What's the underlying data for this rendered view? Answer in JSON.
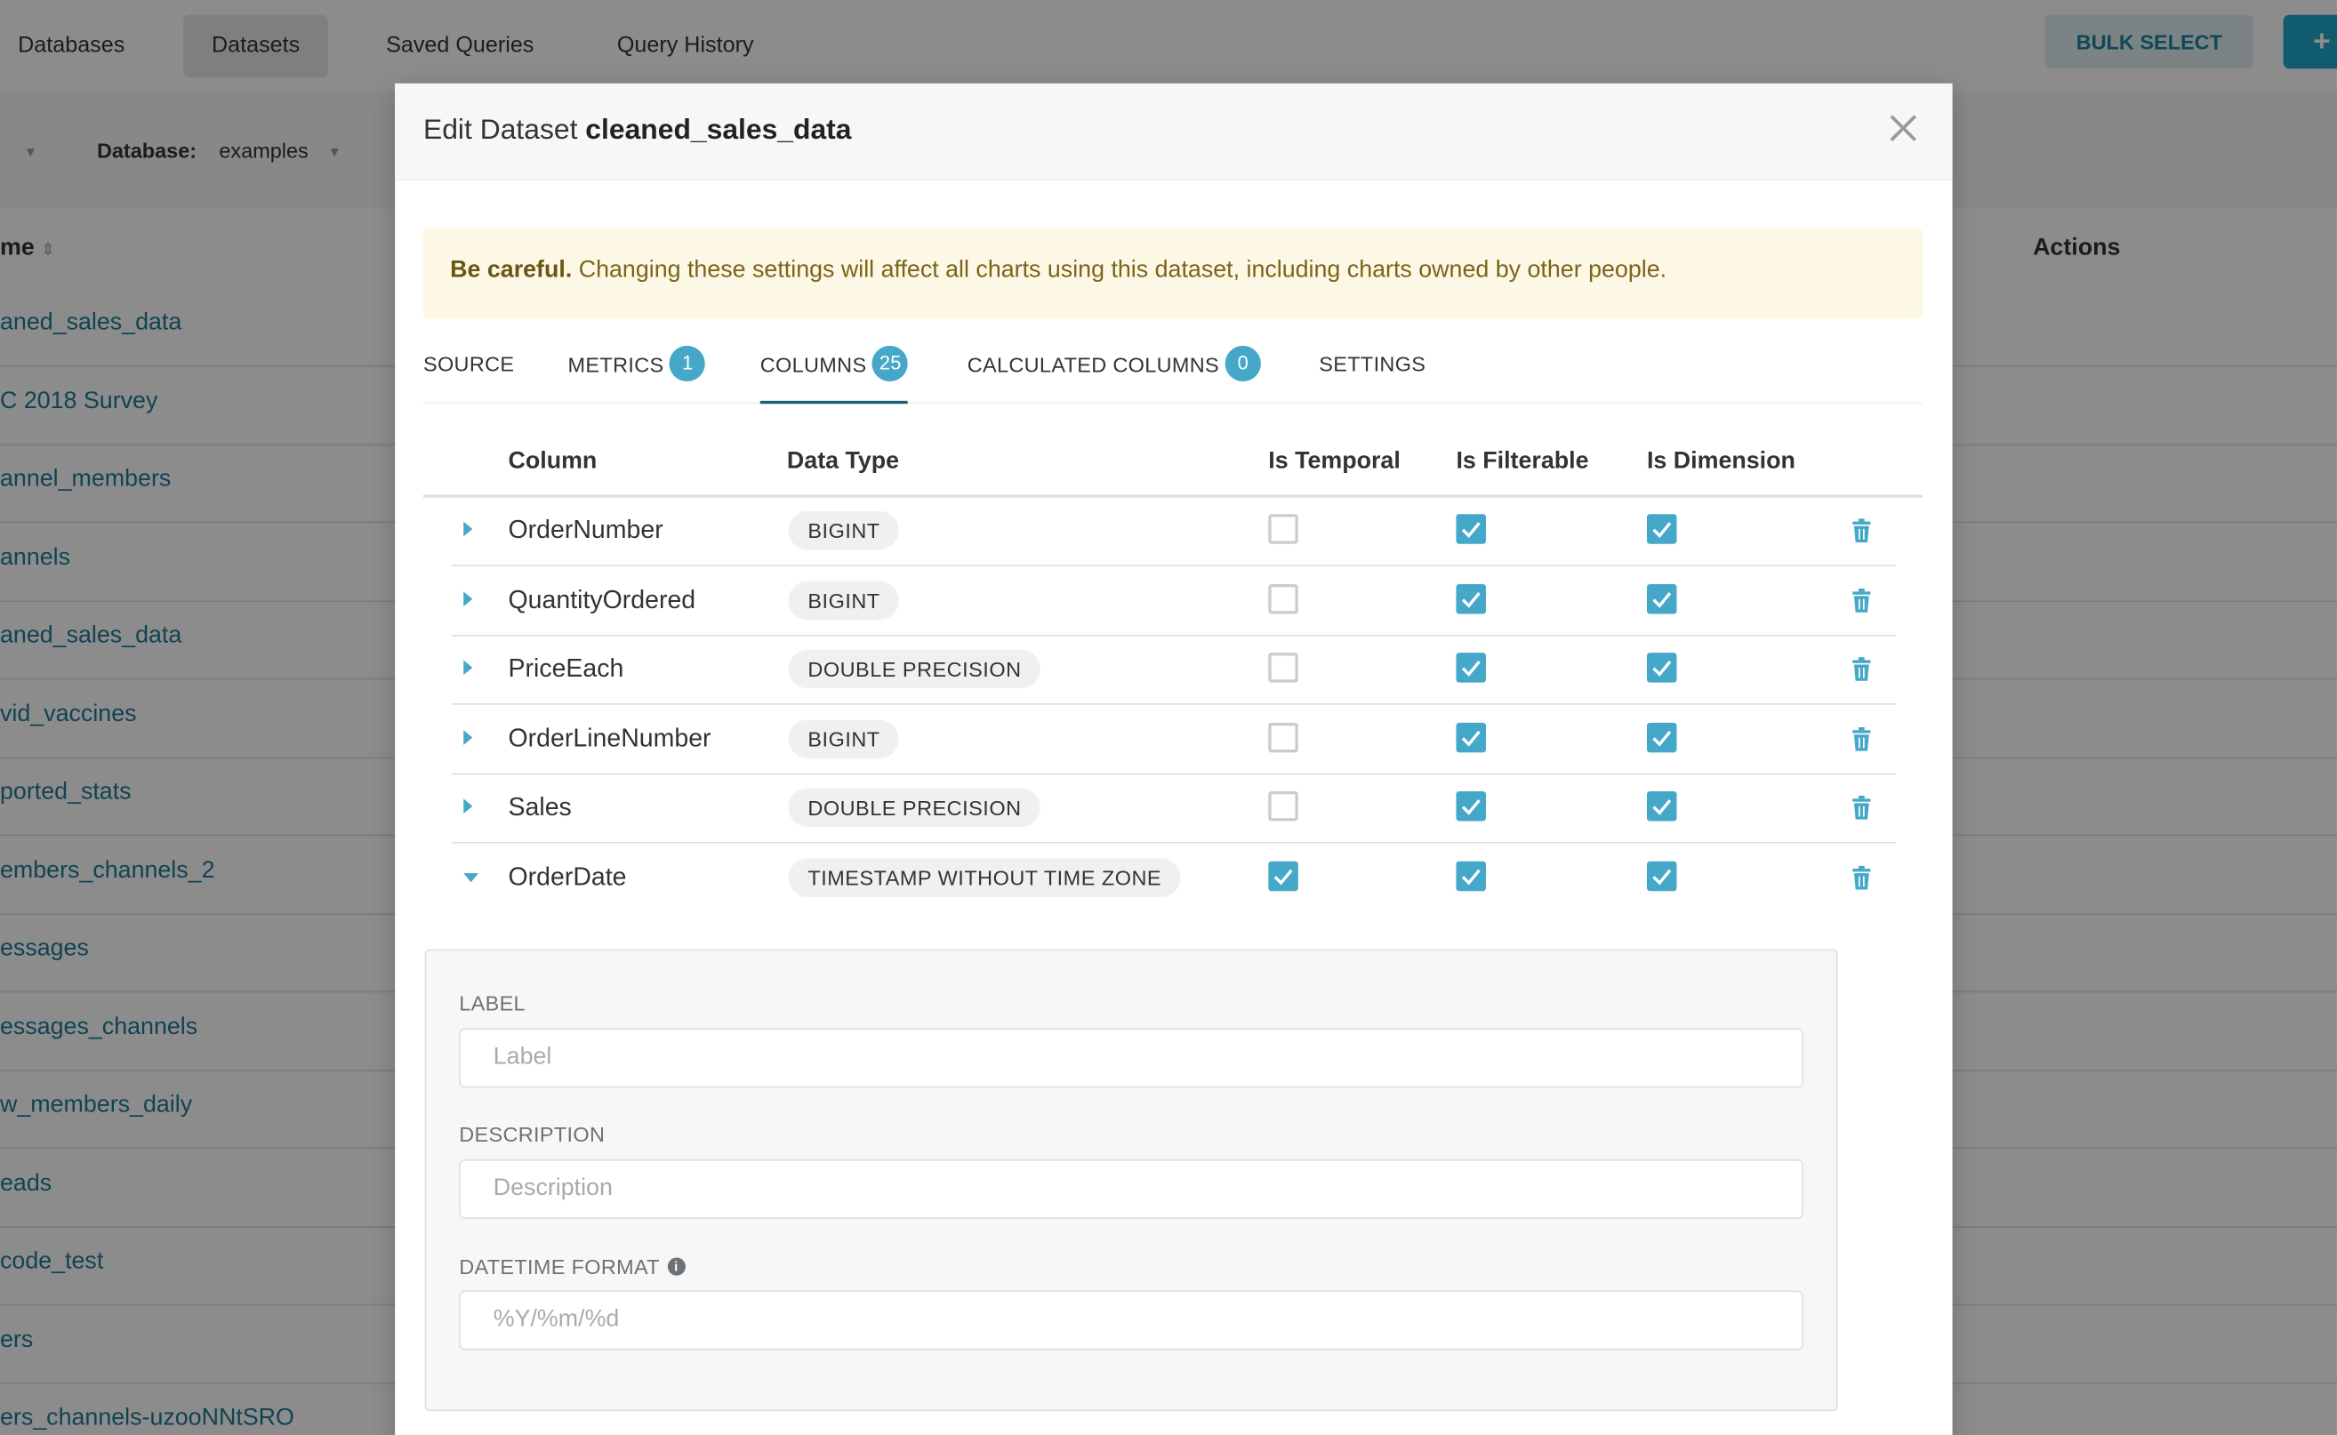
{
  "topnav": {
    "items": [
      {
        "label": "Databases",
        "active": false
      },
      {
        "label": "Datasets",
        "active": true
      },
      {
        "label": "Saved Queries",
        "active": false
      },
      {
        "label": "Query History",
        "active": false
      }
    ],
    "bulk_select": "BULK SELECT",
    "add_button": "+"
  },
  "filters": {
    "database_label": "Database:",
    "database_value": "examples"
  },
  "list": {
    "name_header": "me",
    "actions_header": "Actions",
    "rows": [
      "aned_sales_data",
      "C 2018 Survey",
      "annel_members",
      "annels",
      "aned_sales_data",
      "vid_vaccines",
      "ported_stats",
      "embers_channels_2",
      "essages",
      "essages_channels",
      "w_members_daily",
      "eads",
      "code_test",
      "ers",
      "ers_channels-uzooNNtSRO"
    ]
  },
  "modal": {
    "title_prefix": "Edit Dataset",
    "title_name": "cleaned_sales_data",
    "alert_bold": "Be careful.",
    "alert_text": " Changing these settings will affect all charts using this dataset, including charts owned by other people.",
    "tabs": [
      {
        "label": "SOURCE",
        "badge": null
      },
      {
        "label": "METRICS",
        "badge": "1"
      },
      {
        "label": "COLUMNS",
        "badge": "25",
        "active": true
      },
      {
        "label": "CALCULATED COLUMNS",
        "badge": "0"
      },
      {
        "label": "SETTINGS",
        "badge": null
      }
    ],
    "table": {
      "headers": {
        "column": "Column",
        "data_type": "Data Type",
        "is_temporal": "Is Temporal",
        "is_filterable": "Is Filterable",
        "is_dimension": "Is Dimension"
      },
      "rows": [
        {
          "name": "OrderNumber",
          "type": "BIGINT",
          "temporal": false,
          "filterable": true,
          "dimension": true,
          "expanded": false
        },
        {
          "name": "QuantityOrdered",
          "type": "BIGINT",
          "temporal": false,
          "filterable": true,
          "dimension": true,
          "expanded": false
        },
        {
          "name": "PriceEach",
          "type": "DOUBLE PRECISION",
          "temporal": false,
          "filterable": true,
          "dimension": true,
          "expanded": false
        },
        {
          "name": "OrderLineNumber",
          "type": "BIGINT",
          "temporal": false,
          "filterable": true,
          "dimension": true,
          "expanded": false
        },
        {
          "name": "Sales",
          "type": "DOUBLE PRECISION",
          "temporal": false,
          "filterable": true,
          "dimension": true,
          "expanded": false
        },
        {
          "name": "OrderDate",
          "type": "TIMESTAMP WITHOUT TIME ZONE",
          "temporal": true,
          "filterable": true,
          "dimension": true,
          "expanded": true
        }
      ]
    },
    "details": {
      "label_title": "LABEL",
      "label_placeholder": "Label",
      "description_title": "DESCRIPTION",
      "description_placeholder": "Description",
      "datetime_title": "DATETIME FORMAT",
      "datetime_placeholder": "%Y/%m/%d"
    }
  },
  "colors": {
    "accent": "#45a8c9",
    "alert_bg": "#fcf8e5",
    "alert_text": "#7b6419",
    "link": "#1f7a96"
  }
}
